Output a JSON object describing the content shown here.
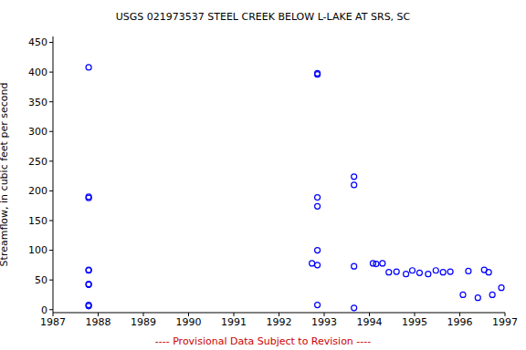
{
  "chart_data": {
    "type": "scatter",
    "title": "USGS 021973537 STEEL CREEK BELOW L-LAKE AT SRS, SC",
    "subtitle": "---- Provisional Data Subject to Revision ----",
    "y_label": "Streamflow, in cubic feet per second",
    "x": [
      1987.79,
      1987.79,
      1987.79,
      1987.79,
      1987.79,
      1987.79,
      1987.79,
      1987.79,
      1987.79,
      1992.73,
      1992.85,
      1992.85,
      1992.85,
      1992.85,
      1992.85,
      1992.85,
      1992.85,
      1993.66,
      1993.66,
      1993.66,
      1993.66,
      1994.08,
      1994.15,
      1994.29,
      1994.43,
      1994.6,
      1994.81,
      1994.95,
      1995.11,
      1995.3,
      1995.47,
      1995.63,
      1995.79,
      1996.07,
      1996.19,
      1996.4,
      1996.54,
      1996.64,
      1996.72,
      1996.92
    ],
    "values": [
      408,
      190,
      188,
      67,
      66,
      43,
      42,
      8,
      6,
      78,
      398,
      396,
      189,
      174,
      100,
      75,
      8,
      224,
      210,
      73,
      3,
      78,
      77,
      78,
      63,
      64,
      60,
      66,
      62,
      60,
      66,
      63,
      64,
      25,
      65,
      20,
      67,
      63,
      25,
      37
    ],
    "color": "#0000ff",
    "marker": "open_circle",
    "xlim": [
      1987,
      1997
    ],
    "ylim": [
      -5,
      460
    ],
    "xticks": [
      1987,
      1988,
      1989,
      1990,
      1991,
      1992,
      1993,
      1994,
      1995,
      1996,
      1997
    ],
    "yticks": [
      0,
      50,
      100,
      150,
      200,
      250,
      300,
      350,
      400,
      450
    ],
    "grid": false
  }
}
